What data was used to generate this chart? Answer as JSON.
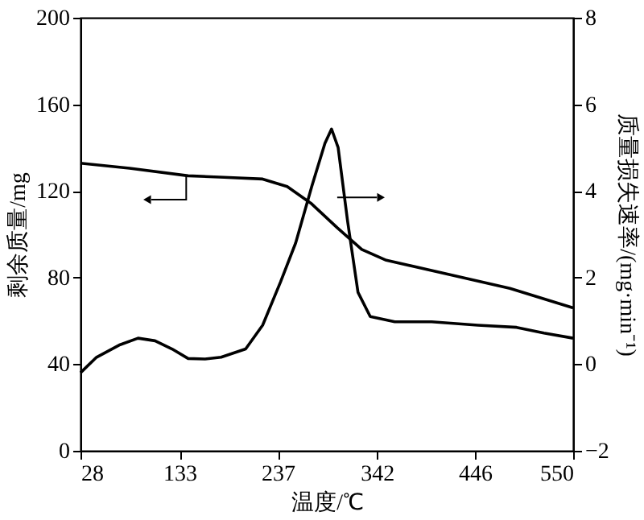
{
  "chart_data": {
    "type": "line",
    "xlabel": "温度/℃",
    "ylabel": "剩余质量/mg",
    "y2label": "质量损失速率/(mg·min⁻¹)",
    "xlim": [
      28,
      550
    ],
    "xticks": [
      28,
      133,
      237,
      342,
      446,
      550
    ],
    "ylim": [
      0,
      200
    ],
    "yticks": [
      0,
      40,
      80,
      120,
      160,
      200
    ],
    "y2lim": [
      -2,
      8
    ],
    "y2ticks": [
      -2,
      0,
      2,
      4,
      6,
      8
    ],
    "series": [
      {
        "color": "#000000",
        "x": [
          28,
          80,
          142,
          180,
          221,
          247,
          273,
          300,
          326,
          352,
          413,
          483,
          550
        ],
        "values": [
          132.8,
          130.5,
          127,
          126.3,
          125.5,
          122,
          114,
          103,
          93,
          88,
          82,
          75,
          66
        ]
      },
      {
        "color": "#000000",
        "axis": "y2",
        "x": [
          28,
          45,
          70,
          89,
          107,
          125,
          142,
          160,
          177,
          203,
          221,
          240,
          256,
          273,
          287,
          294,
          301,
          311,
          322,
          335,
          361,
          400,
          449,
          490,
          519,
          550
        ],
        "values": [
          -0.2,
          0.16,
          0.45,
          0.6,
          0.54,
          0.35,
          0.13,
          0.12,
          0.16,
          0.35,
          0.9,
          1.9,
          2.8,
          4.1,
          5.1,
          5.43,
          5.0,
          3.3,
          1.66,
          1.1,
          0.98,
          0.98,
          0.9,
          0.85,
          0.72,
          0.6
        ]
      }
    ]
  }
}
